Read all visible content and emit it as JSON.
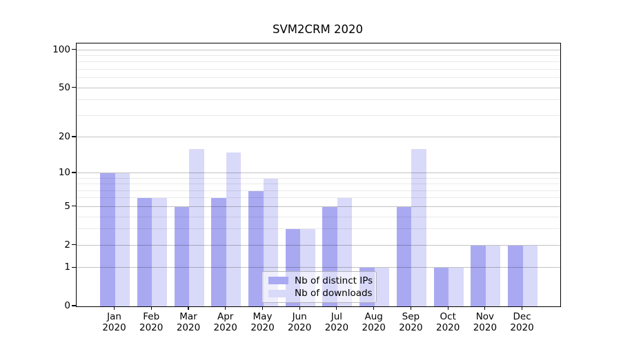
{
  "figure": {
    "background": "#ffffff"
  },
  "chart_data": {
    "type": "bar",
    "title": "SVM2CRM 2020",
    "x_categories": [
      "Jan",
      "Feb",
      "Mar",
      "Apr",
      "May",
      "Jun",
      "Jul",
      "Aug",
      "Sep",
      "Oct",
      "Nov",
      "Dec"
    ],
    "x_year_label": "2020",
    "series": [
      {
        "name": "Nb of distinct IPs",
        "color": "#a9a9f2",
        "values": [
          10,
          6,
          5,
          6,
          7,
          3,
          5,
          1,
          5,
          1,
          2,
          2
        ]
      },
      {
        "name": "Nb of downloads",
        "color": "#d9d9f9",
        "values": [
          10,
          6,
          16,
          15,
          9,
          3,
          6,
          1,
          16,
          1,
          2,
          2
        ]
      }
    ],
    "y_axis": {
      "scale": "symlog (log1p)",
      "major_ticks": [
        0,
        1,
        2,
        5,
        10,
        20,
        50,
        100
      ],
      "minor_ticks": [
        3,
        4,
        6,
        7,
        8,
        9,
        30,
        40,
        60,
        70,
        80,
        90
      ],
      "range": [
        0,
        110
      ]
    },
    "legend": {
      "position": "lower center",
      "items": [
        "Nb of distinct IPs",
        "Nb of downloads"
      ]
    },
    "grid": "horizontal major+minor, drawn over bars"
  }
}
